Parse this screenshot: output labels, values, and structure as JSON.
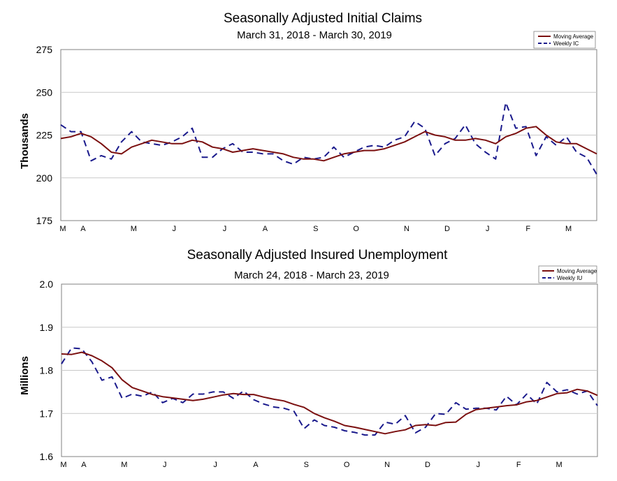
{
  "colors": {
    "ma": "#7b1010",
    "weekly": "#1a1a8c",
    "grid": "#c8c8c8",
    "frame": "#808080"
  },
  "chart_data": [
    {
      "type": "line",
      "title": "Seasonally Adjusted Initial Claims",
      "subtitle": "March 31, 2018 - March 30, 2019",
      "ylabel": "Thousands",
      "ylim": [
        175,
        275
      ],
      "yticks": [
        "175",
        "200",
        "225",
        "250",
        "275"
      ],
      "xmonths": [
        "M",
        "A",
        "M",
        "J",
        "J",
        "A",
        "S",
        "O",
        "N",
        "D",
        "J",
        "F",
        "M"
      ],
      "month_pos": [
        0,
        2,
        7,
        11,
        16,
        20,
        25,
        29,
        34,
        38,
        42,
        46,
        50
      ],
      "legend": [
        "Moving Average",
        "Weekly IC"
      ],
      "series": [
        {
          "name": "Moving Average",
          "values": [
            223,
            224,
            226,
            224,
            220,
            215,
            214,
            218,
            220,
            222,
            221,
            220,
            220,
            222,
            221,
            218,
            217,
            215,
            216,
            217,
            216,
            215,
            214,
            212,
            211,
            211,
            210,
            212,
            214,
            215,
            216,
            216,
            217,
            219,
            221,
            224,
            227,
            225,
            224,
            222,
            222,
            223,
            222,
            220,
            224,
            226,
            229,
            230,
            225,
            221,
            220,
            220,
            217,
            214
          ]
        },
        {
          "name": "Weekly IC",
          "values": [
            231,
            227,
            227,
            210,
            213,
            211,
            221,
            227,
            221,
            220,
            219,
            221,
            224,
            229,
            212,
            212,
            217,
            220,
            215,
            215,
            214,
            214,
            210,
            208,
            212,
            211,
            212,
            218,
            212,
            215,
            218,
            219,
            218,
            222,
            224,
            233,
            229,
            213,
            220,
            223,
            231,
            220,
            215,
            211,
            244,
            229,
            230,
            213,
            224,
            219,
            224,
            215,
            212,
            202
          ]
        }
      ]
    },
    {
      "type": "line",
      "title": "Seasonally Adjusted Insured Unemployment",
      "subtitle": "March 24, 2018 - March 23, 2019",
      "ylabel": "Millions",
      "ylim": [
        1.6,
        2.0
      ],
      "yticks": [
        "1.6",
        "1.7",
        "1.8",
        "1.9",
        "2.0"
      ],
      "xmonths": [
        "M",
        "A",
        "M",
        "J",
        "J",
        "A",
        "S",
        "O",
        "N",
        "D",
        "J",
        "F",
        "M"
      ],
      "month_pos": [
        0,
        2,
        6,
        10,
        15,
        19,
        24,
        28,
        32,
        36,
        41,
        45,
        49
      ],
      "legend": [
        "Moving Average",
        "Weekly IU"
      ],
      "series": [
        {
          "name": "Moving Average",
          "values": [
            1.838,
            1.837,
            1.842,
            1.834,
            1.822,
            1.806,
            1.778,
            1.76,
            1.752,
            1.744,
            1.739,
            1.736,
            1.733,
            1.73,
            1.733,
            1.738,
            1.743,
            1.746,
            1.744,
            1.744,
            1.738,
            1.733,
            1.729,
            1.721,
            1.714,
            1.7,
            1.69,
            1.682,
            1.672,
            1.668,
            1.663,
            1.658,
            1.653,
            1.658,
            1.662,
            1.672,
            1.674,
            1.672,
            1.679,
            1.68,
            1.698,
            1.709,
            1.712,
            1.715,
            1.718,
            1.72,
            1.727,
            1.73,
            1.738,
            1.746,
            1.748,
            1.756,
            1.752,
            1.742
          ]
        },
        {
          "name": "Weekly IU",
          "values": [
            1.815,
            1.852,
            1.85,
            1.82,
            1.777,
            1.785,
            1.735,
            1.745,
            1.74,
            1.75,
            1.725,
            1.735,
            1.725,
            1.745,
            1.745,
            1.75,
            1.75,
            1.735,
            1.752,
            1.732,
            1.722,
            1.715,
            1.712,
            1.705,
            1.665,
            1.685,
            1.672,
            1.668,
            1.66,
            1.656,
            1.65,
            1.65,
            1.68,
            1.675,
            1.695,
            1.655,
            1.668,
            1.7,
            1.698,
            1.725,
            1.71,
            1.712,
            1.712,
            1.708,
            1.74,
            1.72,
            1.745,
            1.722,
            1.772,
            1.75,
            1.755,
            1.745,
            1.752,
            1.718
          ]
        }
      ]
    }
  ]
}
